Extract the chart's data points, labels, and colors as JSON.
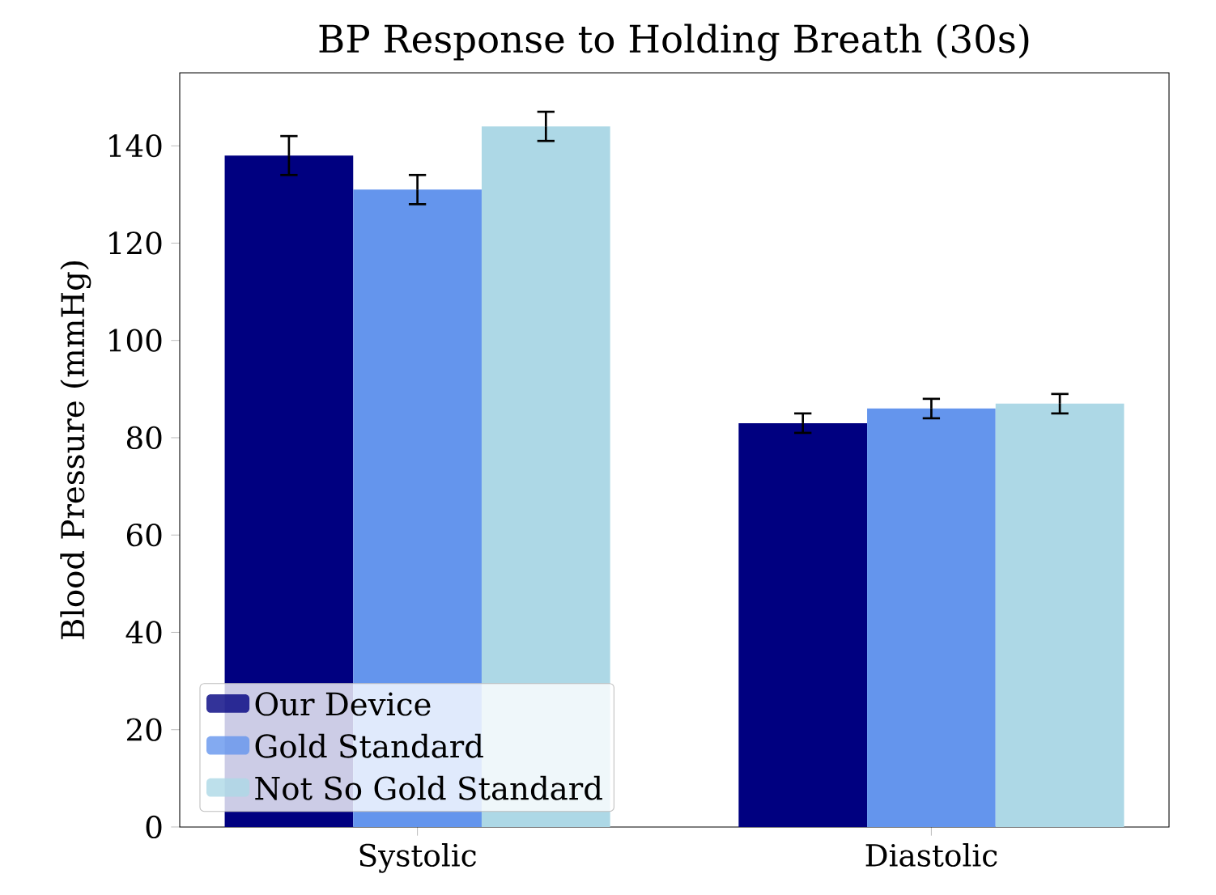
{
  "chart_data": {
    "type": "bar",
    "title": "BP Response to Holding Breath (30s)",
    "ylabel": "Blood Pressure (mmHg)",
    "categories": [
      "Systolic",
      "Diastolic"
    ],
    "series": [
      {
        "name": "Our Device",
        "color": "#000080",
        "values": [
          138,
          83
        ],
        "errors": [
          4,
          2
        ]
      },
      {
        "name": "Gold Standard",
        "color": "#6495ed",
        "values": [
          131,
          86
        ],
        "errors": [
          3,
          2
        ]
      },
      {
        "name": "Not So Gold Standard",
        "color": "#add8e6",
        "values": [
          144,
          87
        ],
        "errors": [
          3,
          2
        ]
      }
    ],
    "ylim": [
      0,
      155
    ],
    "yticks": [
      0,
      20,
      40,
      60,
      80,
      100,
      120,
      140
    ],
    "legend": "bottom left"
  }
}
